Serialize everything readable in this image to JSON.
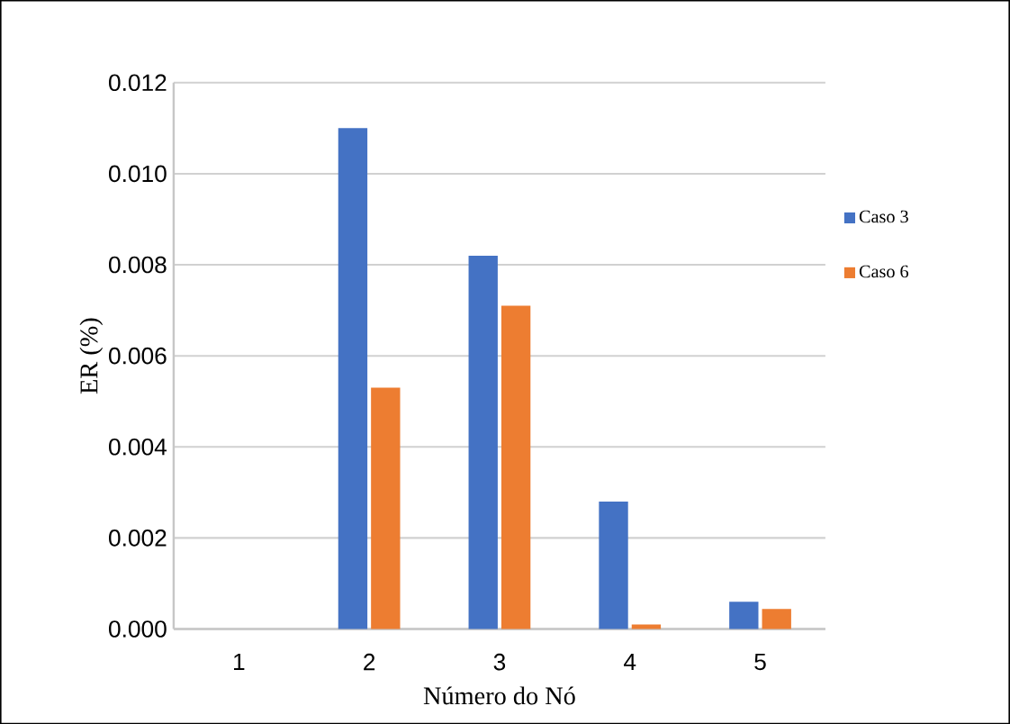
{
  "chart_data": {
    "type": "bar",
    "xlabel": "Número do Nó",
    "ylabel": "ER (%)",
    "categories": [
      "1",
      "2",
      "3",
      "4",
      "5"
    ],
    "series": [
      {
        "name": "Caso 3",
        "color": "#4472c4",
        "values": [
          0,
          0.011,
          0.0082,
          0.0028,
          0.0006
        ]
      },
      {
        "name": "Caso 6",
        "color": "#ed7d31",
        "values": [
          0,
          0.0053,
          0.0071,
          0.0001,
          0.00044
        ]
      }
    ],
    "ylim": [
      0,
      0.012
    ],
    "yticks": [
      {
        "value": 0,
        "label": "0.000"
      },
      {
        "value": 0.002,
        "label": "0.002"
      },
      {
        "value": 0.004,
        "label": "0.004"
      },
      {
        "value": 0.006,
        "label": "0.006"
      },
      {
        "value": 0.008,
        "label": "0.008"
      },
      {
        "value": 0.01,
        "label": "0.010"
      },
      {
        "value": 0.012,
        "label": "0.012"
      }
    ],
    "grid": "y",
    "legend": "right"
  }
}
